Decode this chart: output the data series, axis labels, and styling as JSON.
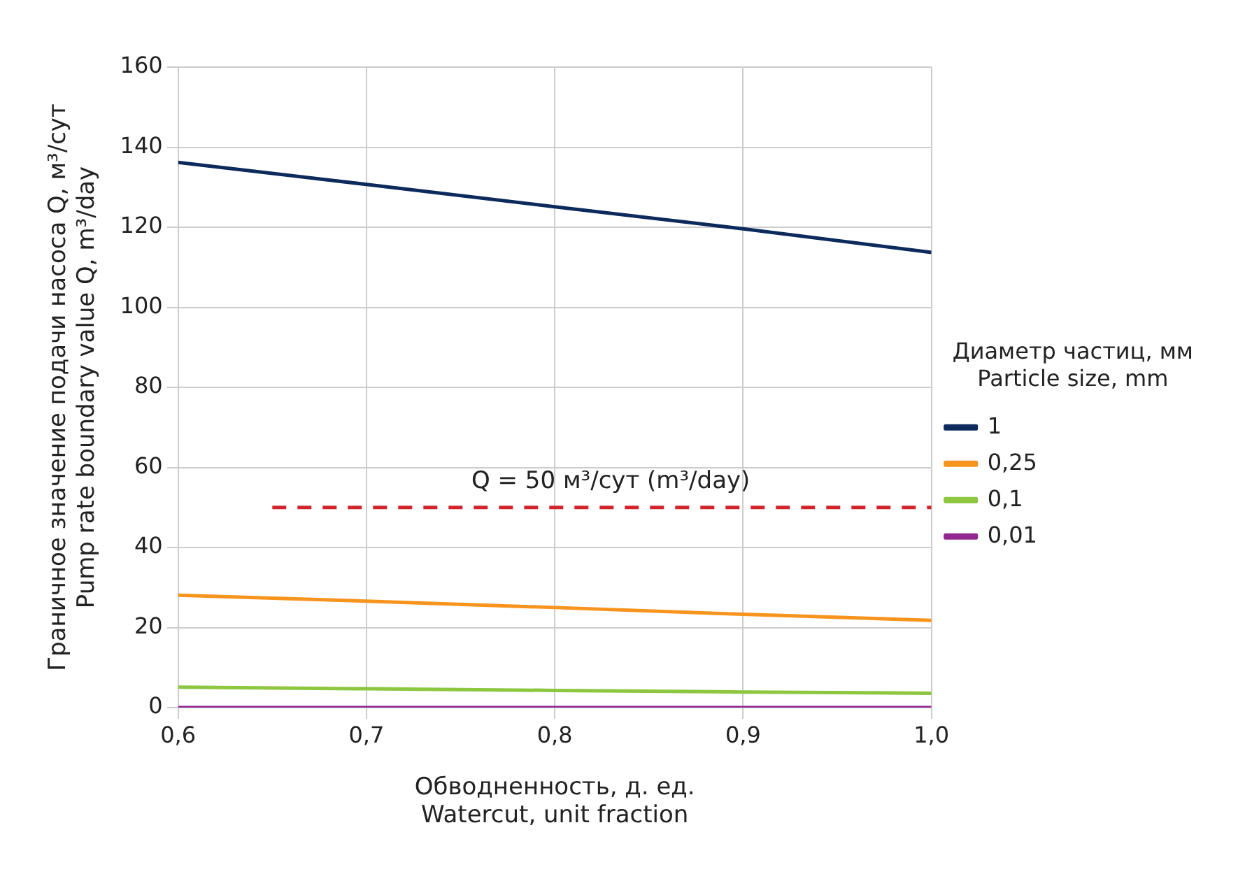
{
  "chart_data": {
    "type": "line",
    "x": [
      0.6,
      0.7,
      0.8,
      0.9,
      1.0
    ],
    "series": [
      {
        "name": "1",
        "color": "#0d2a5c",
        "values": [
          136.2,
          130.7,
          125.1,
          119.6,
          113.7
        ]
      },
      {
        "name": "0,25",
        "color": "#f7941d",
        "values": [
          28.1,
          26.6,
          25.0,
          23.3,
          21.8
        ]
      },
      {
        "name": "0,1",
        "color": "#8dc63f",
        "values": [
          5.1,
          4.7,
          4.3,
          3.9,
          3.6
        ]
      },
      {
        "name": "0,01",
        "color": "#92278f",
        "values": [
          0,
          0,
          0,
          0,
          0
        ]
      },
      {
        "type": "line",
        "x": [
          0.65,
          1.0
        ],
        "values": [
          50,
          50
        ],
        "color": "#d2232a",
        "line_style": "dashed"
      }
    ],
    "xlabel": "Обводненность, д. ед.\nWatercut, unit fraction",
    "ylabel": "Граничное значение подачи насоса Q, м³/сут\nPump rate boundary value Q, m³/day",
    "legend_title": "Диаметр частиц, мм\nParticle size, mm",
    "annotations": [
      {
        "text": "Q = 50 м³/сут (m³/day)",
        "x": 0.8,
        "y": 50
      }
    ],
    "xlim": [
      0.6,
      1.0
    ],
    "xticks": [
      {
        "value": 0.6,
        "label": "0,6"
      },
      {
        "value": 0.7,
        "label": "0,7"
      },
      {
        "value": 0.8,
        "label": "0,8"
      },
      {
        "value": 0.9,
        "label": "0,9"
      },
      {
        "value": 1.0,
        "label": "1,0"
      }
    ],
    "ylim": [
      0,
      160
    ],
    "yticks": [
      0,
      20,
      40,
      60,
      80,
      100,
      120,
      140,
      160
    ],
    "grid": true,
    "legend": "right",
    "marker": "none",
    "line_style": "solid"
  }
}
